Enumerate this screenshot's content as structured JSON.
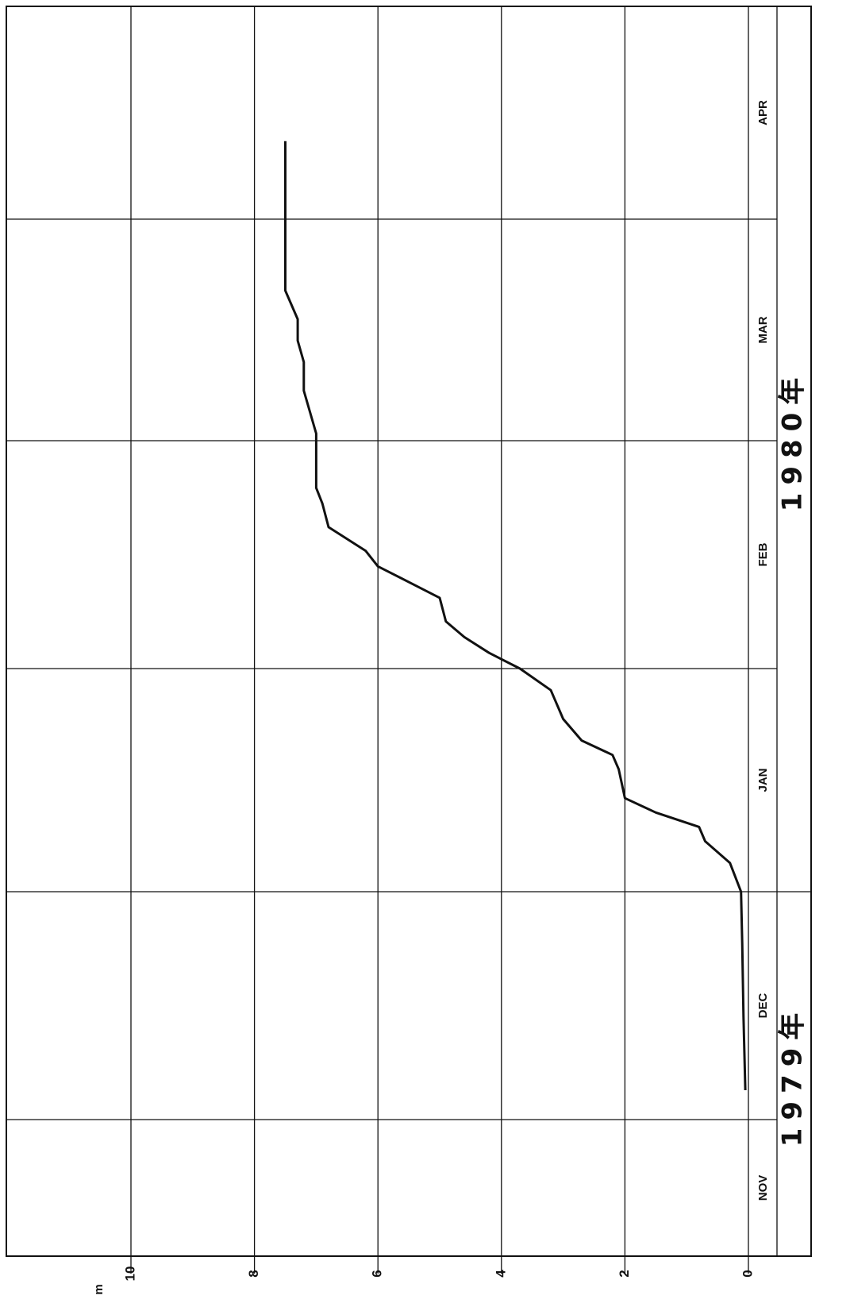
{
  "chart_data": {
    "type": "line",
    "orientation": "rotated-90-ccw",
    "title": "",
    "y_unit": "m",
    "ylim": [
      0,
      10
    ],
    "y_ticks": [
      "0",
      "2",
      "4",
      "6",
      "8",
      "10"
    ],
    "x_months": [
      "NOV",
      "DEC",
      "JAN",
      "FEB",
      "MAR",
      "APR"
    ],
    "x_years": [
      "1979年",
      "1980年"
    ],
    "grid": true,
    "series": [
      {
        "x": [
          "1979-12-05",
          "1979-12-15",
          "1979-12-25",
          "1980-01-01",
          "1980-01-05",
          "1980-01-08",
          "1980-01-10",
          "1980-01-12",
          "1980-01-14",
          "1980-01-18",
          "1980-01-20",
          "1980-01-22",
          "1980-01-25",
          "1980-01-27",
          "1980-01-29",
          "1980-02-01",
          "1980-02-03",
          "1980-02-05",
          "1980-02-07",
          "1980-02-10",
          "1980-02-12",
          "1980-02-14",
          "1980-02-16",
          "1980-02-19",
          "1980-02-22",
          "1980-02-24",
          "1980-02-27",
          "1980-03-02",
          "1980-03-05",
          "1980-03-08",
          "1980-03-12",
          "1980-03-15",
          "1980-03-18",
          "1980-03-22",
          "1980-04-12"
        ],
        "y": [
          0.05,
          0.08,
          0.1,
          0.12,
          0.3,
          0.7,
          0.8,
          1.5,
          2.0,
          2.1,
          2.2,
          2.7,
          3.0,
          3.1,
          3.2,
          3.7,
          4.2,
          4.6,
          4.9,
          5.0,
          5.5,
          6.0,
          6.2,
          6.8,
          6.9,
          7.0,
          7.0,
          7.0,
          7.1,
          7.2,
          7.2,
          7.3,
          7.3,
          7.5,
          7.5
        ]
      }
    ]
  }
}
